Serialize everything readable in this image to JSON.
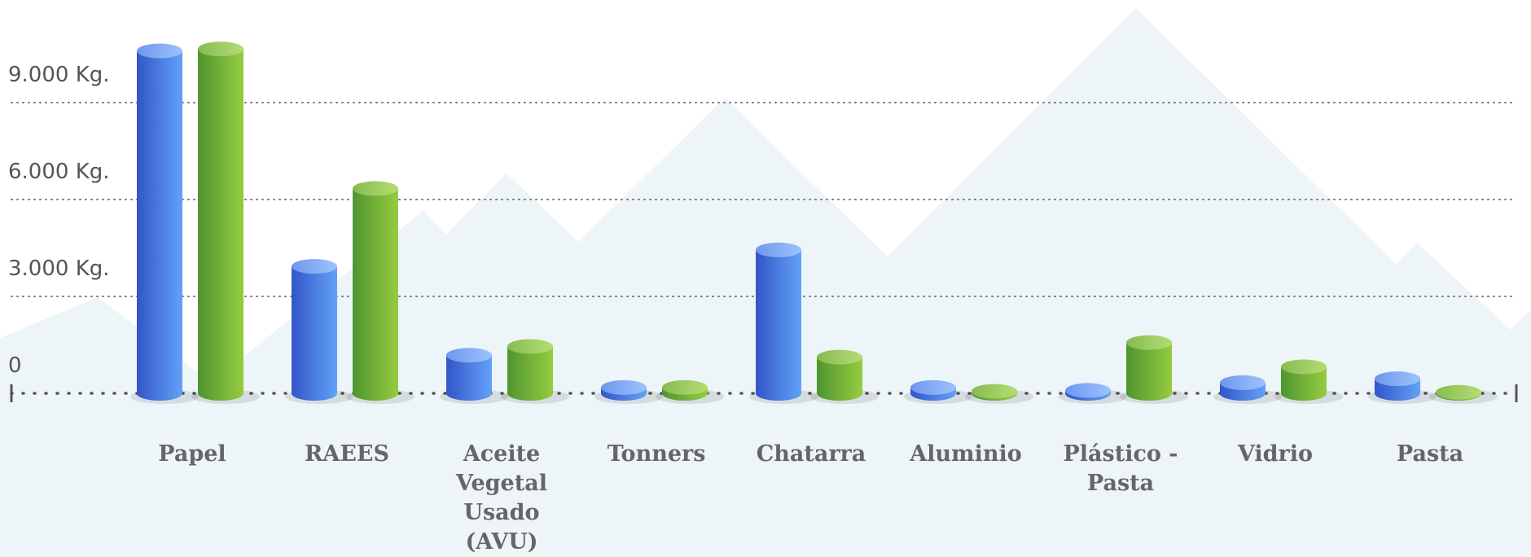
{
  "chart_data": {
    "type": "bar",
    "categories": [
      "Papel",
      "RAEES",
      "Aceite Vegetal Usado (AVU)",
      "Tonners",
      "Chatarra",
      "Aluminio",
      "Plástico - Pasta",
      "Vidrio",
      "Pasta"
    ],
    "series": [
      {
        "color": "#4a78e6",
        "values": [
          10600,
          3930,
          1180,
          180,
          4440,
          180,
          90,
          330,
          450
        ]
      },
      {
        "color": "#76b83a",
        "values": [
          10660,
          6340,
          1450,
          180,
          1120,
          60,
          1570,
          820,
          30
        ]
      }
    ],
    "ylim": [
      0,
      12000
    ],
    "yticks": [
      0,
      {
        "value": 3000,
        "label": "3.000 Kg."
      },
      {
        "value": 6000,
        "label": "6.000 Kg."
      },
      {
        "value": 9000,
        "label": "9.000 Kg."
      }
    ],
    "grid": true
  }
}
